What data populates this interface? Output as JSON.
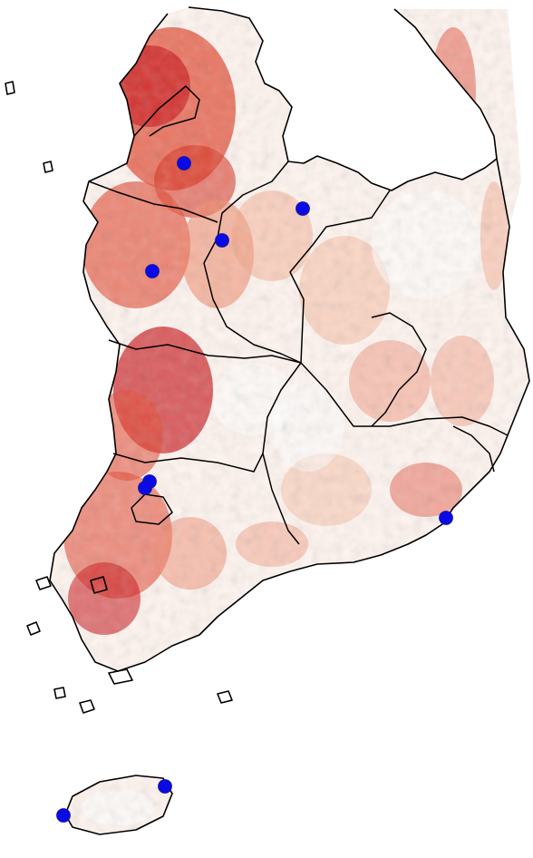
{
  "map": {
    "heat_colors": {
      "low": "#fff5f0",
      "mid": "#f08a6c",
      "high": "#cb181d"
    },
    "outline_color": "#000000",
    "marker_color": "#0a0ae6",
    "marker_count": 10
  }
}
